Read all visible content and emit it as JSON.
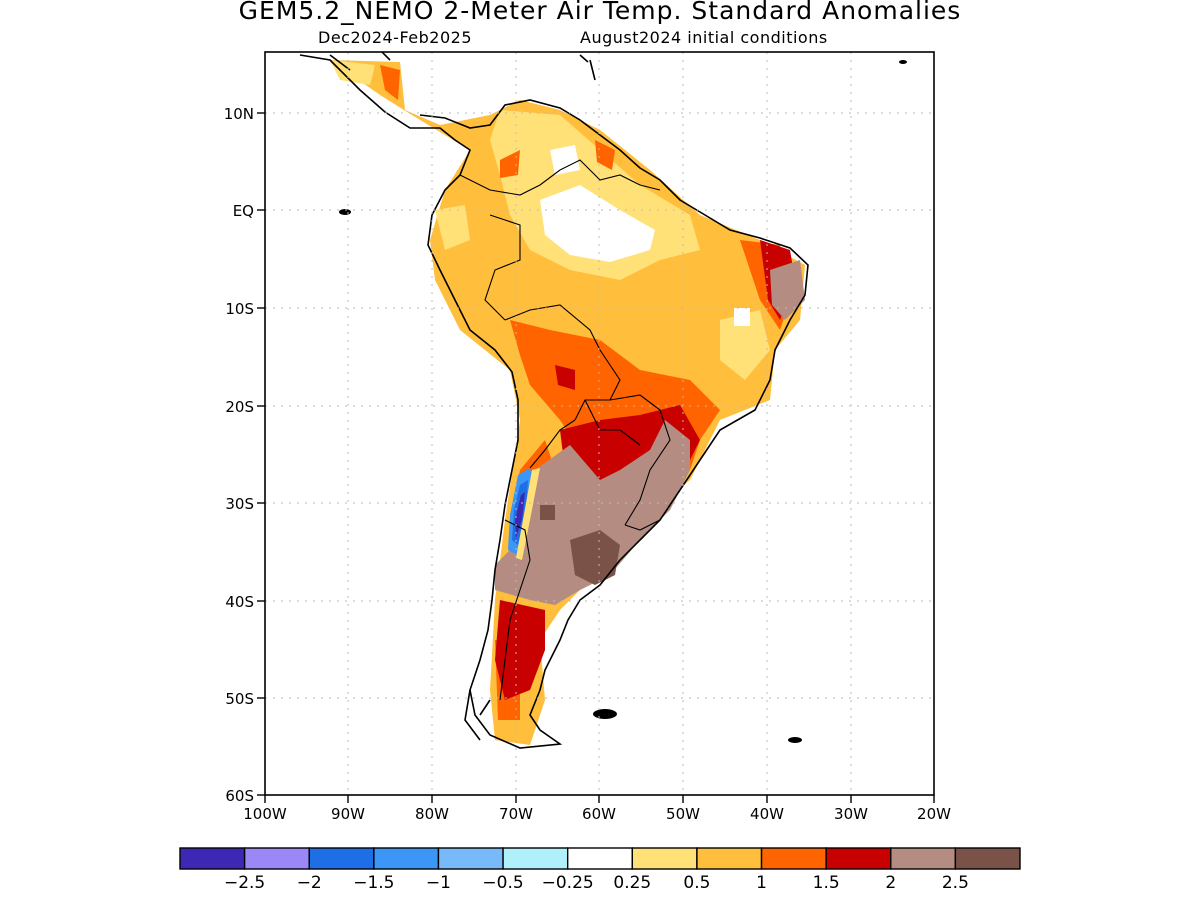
{
  "header": {
    "title": "GEM5.2_NEMO 2-Meter Air Temp. Standard Anomalies",
    "period": "Dec2024-Feb2025",
    "init": "August2024 initial conditions"
  },
  "axes": {
    "lat_labels": [
      "10N",
      "EQ",
      "10S",
      "20S",
      "30S",
      "40S",
      "50S",
      "60S"
    ],
    "lon_labels": [
      "100W",
      "90W",
      "80W",
      "70W",
      "60W",
      "50W",
      "40W",
      "30W",
      "20W"
    ]
  },
  "colorbar": {
    "colors": [
      "#3c28b4",
      "#9b87f5",
      "#1e6ee6",
      "#3c96f5",
      "#78b9fa",
      "#aff0fa",
      "#ffffff",
      "#ffe178",
      "#ffbe3c",
      "#ff6400",
      "#c80000",
      "#b48c82",
      "#7a5248"
    ],
    "labels": [
      "-2.5",
      "-2",
      "-1.5",
      "-1",
      "-0.5",
      "-0.25",
      "0.25",
      "0.5",
      "1",
      "1.5",
      "2",
      "2.5"
    ]
  },
  "map": {
    "region": "South America",
    "lon_range": [
      -100,
      -20
    ],
    "lat_range": [
      -60,
      16
    ]
  }
}
